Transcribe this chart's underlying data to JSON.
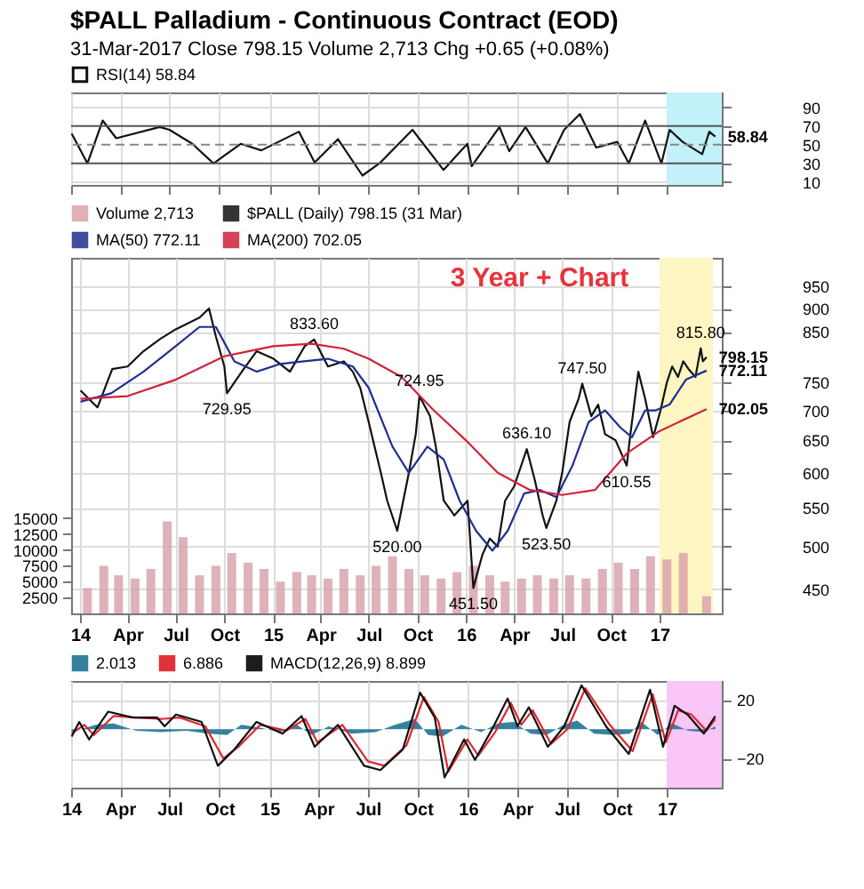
{
  "chart_data": [
    {
      "type": "line",
      "title": "$PALL Palladium - Continuous Contract (EOD)",
      "subtitle": "31-Mar-2017     Close 798.15  Volume 2,713  Chg +0.65 (+0.08%)",
      "xlim": [
        "2014-01-01",
        "2017-04-12"
      ],
      "xticks": [
        {
          "value": "2014-01-01",
          "label": null
        },
        {
          "value": "2014-04-01",
          "label": null
        },
        {
          "value": "2014-07-01",
          "label": null
        },
        {
          "value": "2014-10-01",
          "label": null
        },
        {
          "value": "2015-01-01",
          "label": null
        },
        {
          "value": "2015-04-01",
          "label": null
        },
        {
          "value": "2015-07-01",
          "label": null
        },
        {
          "value": "2015-10-01",
          "label": null
        },
        {
          "value": "2016-01-01",
          "label": null
        },
        {
          "value": "2016-04-01",
          "label": null
        },
        {
          "value": "2016-07-01",
          "label": null
        },
        {
          "value": "2016-10-01",
          "label": null
        },
        {
          "value": "2017-01-01",
          "label": null
        }
      ],
      "ylim": [
        7,
        106
      ],
      "yticks": [
        10,
        30,
        50,
        70,
        90
      ],
      "tick_labels": "y",
      "grid": true,
      "legend": "top",
      "series": [
        {
          "name": "RSI(14) 58.84",
          "color": "#111111",
          "x": [
            "2014-01-02",
            "2014-01-31",
            "2014-02-28",
            "2014-03-25",
            "2014-06-13",
            "2014-07-01",
            "2014-08-12",
            "2014-09-20",
            "2014-11-09",
            "2014-12-17",
            "2015-02-24",
            "2015-03-25",
            "2015-05-07",
            "2015-06-21",
            "2015-07-24",
            "2015-09-21",
            "2015-11-17",
            "2015-12-31",
            "2016-01-08",
            "2016-02-28",
            "2016-03-17",
            "2016-04-16",
            "2016-05-27",
            "2016-06-26",
            "2016-07-25",
            "2016-08-24",
            "2016-10-02",
            "2016-10-23",
            "2016-11-22",
            "2016-12-22",
            "2017-01-06",
            "2017-01-30",
            "2017-03-07",
            "2017-03-20",
            "2017-03-31"
          ],
          "values": [
            62,
            30,
            76,
            57,
            69,
            66,
            51,
            30,
            51,
            44,
            64,
            31,
            56,
            17,
            31,
            66,
            23,
            51,
            27,
            69,
            43,
            69,
            30,
            66,
            83,
            47,
            53,
            30,
            76,
            30,
            66,
            53,
            40,
            64,
            58.84
          ]
        }
      ],
      "ref_lines": [
        {
          "axis": "y",
          "value": 70,
          "color": "#555555"
        },
        {
          "axis": "y",
          "value": 30,
          "color": "#555555"
        },
        {
          "axis": "y",
          "value": 50,
          "color": "#888888",
          "line_style": "dashed"
        }
      ],
      "bands": [
        {
          "axis": "x",
          "from": "2017-01-01",
          "to": "2017-04-12",
          "color": "#c2f1fa"
        }
      ],
      "annotations": [
        {
          "text": "58.84",
          "x": "2017-03-31",
          "y": 58.84
        }
      ]
    },
    {
      "type": "line",
      "xlim": [
        "2014-01-01",
        "2017-04-12"
      ],
      "xticks": [
        {
          "value": "2014-01-01",
          "label": "14"
        },
        {
          "value": "2014-04-01",
          "label": "Apr"
        },
        {
          "value": "2014-07-01",
          "label": "Jul"
        },
        {
          "value": "2014-10-01",
          "label": "Oct"
        },
        {
          "value": "2015-01-01",
          "label": "15"
        },
        {
          "value": "2015-04-01",
          "label": "Apr"
        },
        {
          "value": "2015-07-01",
          "label": "Jul"
        },
        {
          "value": "2015-10-01",
          "label": "Oct"
        },
        {
          "value": "2016-01-01",
          "label": "16"
        },
        {
          "value": "2016-04-01",
          "label": "Apr"
        },
        {
          "value": "2016-07-01",
          "label": "Jul"
        },
        {
          "value": "2016-10-01",
          "label": "Oct"
        },
        {
          "value": "2017-01-01",
          "label": "17"
        }
      ],
      "ylim": [
        424,
        1020
      ],
      "yticks": [
        450,
        500,
        550,
        600,
        650,
        700,
        750,
        850,
        900,
        950
      ],
      "log": true,
      "y2lim": [
        0,
        56000
      ],
      "y2ticks": [
        2500,
        5000,
        7500,
        10000,
        12500,
        15000
      ],
      "grid": true,
      "legend": "top",
      "series": [
        {
          "name": "Volume 2,713",
          "type": "bar",
          "axis": "y2",
          "color": "#d9a3ab",
          "x": [
            "2014-01-15",
            "2014-02-15",
            "2014-03-15",
            "2014-04-15",
            "2014-05-15",
            "2014-06-15",
            "2014-07-15",
            "2014-08-15",
            "2014-09-15",
            "2014-10-15",
            "2014-11-15",
            "2014-12-15",
            "2015-01-15",
            "2015-02-15",
            "2015-03-15",
            "2015-04-15",
            "2015-05-15",
            "2015-06-15",
            "2015-07-15",
            "2015-08-15",
            "2015-09-15",
            "2015-10-15",
            "2015-11-15",
            "2015-12-15",
            "2016-01-15",
            "2016-02-15",
            "2016-03-15",
            "2016-04-15",
            "2016-05-15",
            "2016-06-15",
            "2016-07-15",
            "2016-08-15",
            "2016-09-15",
            "2016-10-15",
            "2016-11-15",
            "2016-12-15",
            "2017-01-15",
            "2017-02-15",
            "2017-03-31"
          ],
          "values": [
            4000,
            7500,
            6000,
            5500,
            7000,
            14500,
            12000,
            6000,
            7500,
            9500,
            8000,
            7000,
            5000,
            6500,
            6000,
            5500,
            7000,
            6000,
            7500,
            9000,
            7000,
            6000,
            5500,
            6500,
            7500,
            6000,
            5000,
            5500,
            6000,
            5500,
            6000,
            5500,
            7000,
            8000,
            7000,
            9000,
            8500,
            9500,
            2713
          ]
        },
        {
          "name": "$PALL (Daily) 798.15 (31 Mar)",
          "color": "#111111",
          "x": [
            "2014-01-02",
            "2014-02-03",
            "2014-03-03",
            "2014-04-01",
            "2014-05-01",
            "2014-06-02",
            "2014-07-01",
            "2014-08-15",
            "2014-09-02",
            "2014-09-15",
            "2014-10-01",
            "2014-10-06",
            "2014-11-03",
            "2014-12-01",
            "2015-01-02",
            "2015-02-02",
            "2015-03-02",
            "2015-03-20",
            "2015-04-15",
            "2015-05-15",
            "2015-06-01",
            "2015-06-15",
            "2015-07-01",
            "2015-07-24",
            "2015-08-05",
            "2015-08-24",
            "2015-09-15",
            "2015-09-28",
            "2015-10-05",
            "2015-10-25",
            "2015-11-05",
            "2015-11-20",
            "2015-12-10",
            "2016-01-04",
            "2016-01-15",
            "2016-02-01",
            "2016-02-15",
            "2016-03-01",
            "2016-03-15",
            "2016-04-01",
            "2016-04-25",
            "2016-05-10",
            "2016-05-25",
            "2016-06-01",
            "2016-06-20",
            "2016-07-01",
            "2016-07-15",
            "2016-08-01",
            "2016-08-08",
            "2016-08-25",
            "2016-09-07",
            "2016-09-20",
            "2016-10-10",
            "2016-10-31",
            "2016-11-07",
            "2016-11-22",
            "2016-12-05",
            "2016-12-20",
            "2017-01-03",
            "2017-01-15",
            "2017-01-25",
            "2017-02-05",
            "2017-02-15",
            "2017-02-25",
            "2017-03-10",
            "2017-03-20",
            "2017-03-24",
            "2017-03-31"
          ],
          "values": [
            735,
            705,
            775,
            780,
            810,
            835,
            855,
            880,
            900,
            840,
            780,
            729.95,
            770,
            810,
            795,
            770,
            820,
            833.6,
            780,
            790,
            770,
            740,
            680,
            600,
            560,
            520,
            600,
            660,
            724.95,
            690,
            640,
            560,
            540,
            560,
            451.5,
            490,
            510,
            500,
            560,
            580,
            636.1,
            590,
            540,
            523.5,
            560,
            600,
            680,
            720,
            747.5,
            690,
            710,
            660,
            650,
            610.55,
            660,
            770,
            720,
            655,
            700,
            750,
            780,
            760,
            790,
            775,
            760,
            815.8,
            790,
            798.15
          ]
        },
        {
          "name": "MA(50) 772.11",
          "color": "#1f2f8f",
          "x": [
            "2014-01-02",
            "2014-03-01",
            "2014-05-01",
            "2014-07-01",
            "2014-08-15",
            "2014-09-15",
            "2014-10-20",
            "2014-12-01",
            "2015-01-15",
            "2015-03-01",
            "2015-04-15",
            "2015-06-01",
            "2015-07-01",
            "2015-08-15",
            "2015-09-15",
            "2015-10-20",
            "2015-11-20",
            "2015-12-20",
            "2016-01-20",
            "2016-02-20",
            "2016-03-20",
            "2016-04-20",
            "2016-05-20",
            "2016-06-20",
            "2016-07-20",
            "2016-08-20",
            "2016-09-20",
            "2016-10-20",
            "2016-11-10",
            "2016-12-05",
            "2016-12-25",
            "2017-01-20",
            "2017-02-20",
            "2017-03-31"
          ],
          "values": [
            715,
            730,
            770,
            820,
            860,
            860,
            790,
            770,
            785,
            790,
            795,
            780,
            740,
            640,
            600,
            640,
            620,
            560,
            520,
            495,
            520,
            570,
            575,
            565,
            610,
            680,
            700,
            670,
            655,
            700,
            700,
            710,
            755,
            772.11
          ]
        },
        {
          "name": "MA(200) 702.05",
          "color": "#d0223a",
          "x": [
            "2014-01-02",
            "2014-04-01",
            "2014-07-01",
            "2014-10-01",
            "2015-01-02",
            "2015-03-15",
            "2015-05-15",
            "2015-07-01",
            "2015-09-01",
            "2015-11-01",
            "2016-01-01",
            "2016-03-01",
            "2016-05-01",
            "2016-07-01",
            "2016-09-01",
            "2016-11-01",
            "2017-01-01",
            "2017-03-31"
          ],
          "values": [
            720,
            725,
            755,
            800,
            820,
            825,
            815,
            795,
            760,
            700,
            650,
            600,
            575,
            568,
            575,
            630,
            665,
            702.05
          ]
        }
      ],
      "bands": [
        {
          "axis": "x",
          "from": "2017-01-01",
          "to": "2017-04-12",
          "color": "#fdf6c3"
        }
      ],
      "annotations": [
        "3 Year + Chart",
        {
          "text": "729.95",
          "x": "2014-10-06",
          "y": 729.95
        },
        {
          "text": "833.60",
          "x": "2015-03-20",
          "y": 833.6
        },
        {
          "text": "724.95",
          "x": "2015-10-05",
          "y": 724.95
        },
        {
          "text": "520.00",
          "x": "2015-08-24",
          "y": 520
        },
        {
          "text": "451.50",
          "x": "2016-01-15",
          "y": 451.5
        },
        {
          "text": "636.10",
          "x": "2016-04-25",
          "y": 636.1
        },
        {
          "text": "523.50",
          "x": "2016-06-01",
          "y": 523.5
        },
        {
          "text": "747.50",
          "x": "2016-08-08",
          "y": 747.5
        },
        {
          "text": "610.55",
          "x": "2016-10-31",
          "y": 610.55
        },
        {
          "text": "815.80",
          "x": "2017-03-20",
          "y": 815.8
        },
        {
          "text": "798.15",
          "x": "2017-03-31",
          "y": 798.15
        },
        {
          "text": "772.11",
          "x": "2017-03-31",
          "y": 772.11
        },
        {
          "text": "702.05",
          "x": "2017-03-31",
          "y": 702.05
        }
      ]
    },
    {
      "type": "line",
      "xlim": [
        "2014-01-01",
        "2017-04-12"
      ],
      "xticks": [
        {
          "value": "2014-01-01",
          "label": "14"
        },
        {
          "value": "2014-04-01",
          "label": "Apr"
        },
        {
          "value": "2014-07-01",
          "label": "Jul"
        },
        {
          "value": "2014-10-01",
          "label": "Oct"
        },
        {
          "value": "2015-01-01",
          "label": "15"
        },
        {
          "value": "2015-04-01",
          "label": "Apr"
        },
        {
          "value": "2015-07-01",
          "label": "Jul"
        },
        {
          "value": "2015-10-01",
          "label": "Oct"
        },
        {
          "value": "2016-01-01",
          "label": "16"
        },
        {
          "value": "2016-04-01",
          "label": "Apr"
        },
        {
          "value": "2016-07-01",
          "label": "Jul"
        },
        {
          "value": "2016-10-01",
          "label": "Oct"
        },
        {
          "value": "2017-01-01",
          "label": "17"
        }
      ],
      "ylim": [
        -40,
        33
      ],
      "yticks": [
        -20,
        20
      ],
      "grid": true,
      "legend": "top",
      "series": [
        {
          "name": "2.013",
          "type": "area",
          "color": "#2b7a98",
          "x": [
            "2014-01-02",
            "2014-02-15",
            "2014-03-20",
            "2014-05-01",
            "2014-06-15",
            "2014-08-01",
            "2014-09-10",
            "2014-10-15",
            "2014-11-10",
            "2014-12-15",
            "2015-01-20",
            "2015-02-20",
            "2015-03-20",
            "2015-04-20",
            "2015-06-01",
            "2015-07-15",
            "2015-08-20",
            "2015-09-25",
            "2015-10-20",
            "2015-11-15",
            "2015-12-20",
            "2016-01-25",
            "2016-02-25",
            "2016-03-25",
            "2016-04-25",
            "2016-05-25",
            "2016-06-25",
            "2016-07-20",
            "2016-08-20",
            "2016-09-25",
            "2016-10-25",
            "2016-11-15",
            "2016-12-15",
            "2017-01-10",
            "2017-02-10",
            "2017-03-10",
            "2017-03-31"
          ],
          "values": [
            -2,
            3,
            4,
            -1,
            -2,
            -1,
            -3,
            -4,
            3,
            1,
            -2,
            3,
            -4,
            2,
            -3,
            -2,
            3,
            7,
            -4,
            -5,
            3,
            -2,
            4,
            5,
            -3,
            -4,
            3,
            6,
            -3,
            -4,
            -3,
            5,
            -4,
            4,
            -1,
            -2,
            2.013
          ]
        },
        {
          "name": "6.886",
          "color": "#e0262f",
          "x": [
            "2014-01-02",
            "2014-01-25",
            "2014-02-12",
            "2014-03-20",
            "2014-05-01",
            "2014-06-15",
            "2014-07-20",
            "2014-09-05",
            "2014-10-08",
            "2014-11-05",
            "2014-12-15",
            "2015-02-01",
            "2015-03-08",
            "2015-03-30",
            "2015-05-15",
            "2015-07-01",
            "2015-07-31",
            "2015-09-10",
            "2015-10-12",
            "2015-11-08",
            "2015-11-26",
            "2015-12-31",
            "2016-01-20",
            "2016-02-20",
            "2016-03-20",
            "2016-04-08",
            "2016-04-29",
            "2016-06-02",
            "2016-07-02",
            "2016-08-04",
            "2016-09-18",
            "2016-10-30",
            "2016-12-06",
            "2016-12-30",
            "2017-01-22",
            "2017-02-15",
            "2017-03-15",
            "2017-03-31"
          ],
          "values": [
            -3,
            3,
            -4,
            9,
            8,
            7,
            8,
            2,
            -20,
            -12,
            3,
            -1,
            7,
            -9,
            3,
            -22,
            -25,
            -11,
            22,
            5,
            -29,
            -7,
            -18,
            -2,
            18,
            3,
            13,
            -10,
            0,
            28,
            3,
            -15,
            24,
            -9,
            13,
            10,
            -1,
            6.886
          ]
        },
        {
          "name": "MACD(12,26,9) 8.899",
          "color": "#111111",
          "x": [
            "2014-01-02",
            "2014-01-16",
            "2014-02-03",
            "2014-03-10",
            "2014-04-24",
            "2014-06-08",
            "2014-06-22",
            "2014-07-13",
            "2014-08-29",
            "2014-09-28",
            "2014-10-28",
            "2014-12-08",
            "2015-01-25",
            "2015-03-01",
            "2015-03-25",
            "2015-05-07",
            "2015-06-24",
            "2015-07-24",
            "2015-09-03",
            "2015-10-05",
            "2015-11-01",
            "2015-11-19",
            "2015-12-25",
            "2016-01-14",
            "2016-02-13",
            "2016-03-14",
            "2016-04-01",
            "2016-04-22",
            "2016-05-27",
            "2016-06-26",
            "2016-07-28",
            "2016-09-11",
            "2016-10-23",
            "2016-12-01",
            "2016-12-25",
            "2017-01-15",
            "2017-02-08",
            "2017-03-10",
            "2017-03-31"
          ],
          "values": [
            -5,
            5,
            -7,
            12,
            8,
            8,
            2,
            10,
            5,
            -25,
            -14,
            5,
            -3,
            9,
            -12,
            3,
            -25,
            -28,
            -14,
            25,
            8,
            -33,
            -7,
            -21,
            -1,
            21,
            2,
            15,
            -12,
            2,
            30,
            2,
            -17,
            27,
            -12,
            16,
            10,
            -3,
            8.899
          ]
        }
      ],
      "bands": [
        {
          "axis": "x",
          "from": "2017-01-01",
          "to": "2017-04-12",
          "color": "#fac6f7"
        }
      ]
    }
  ]
}
